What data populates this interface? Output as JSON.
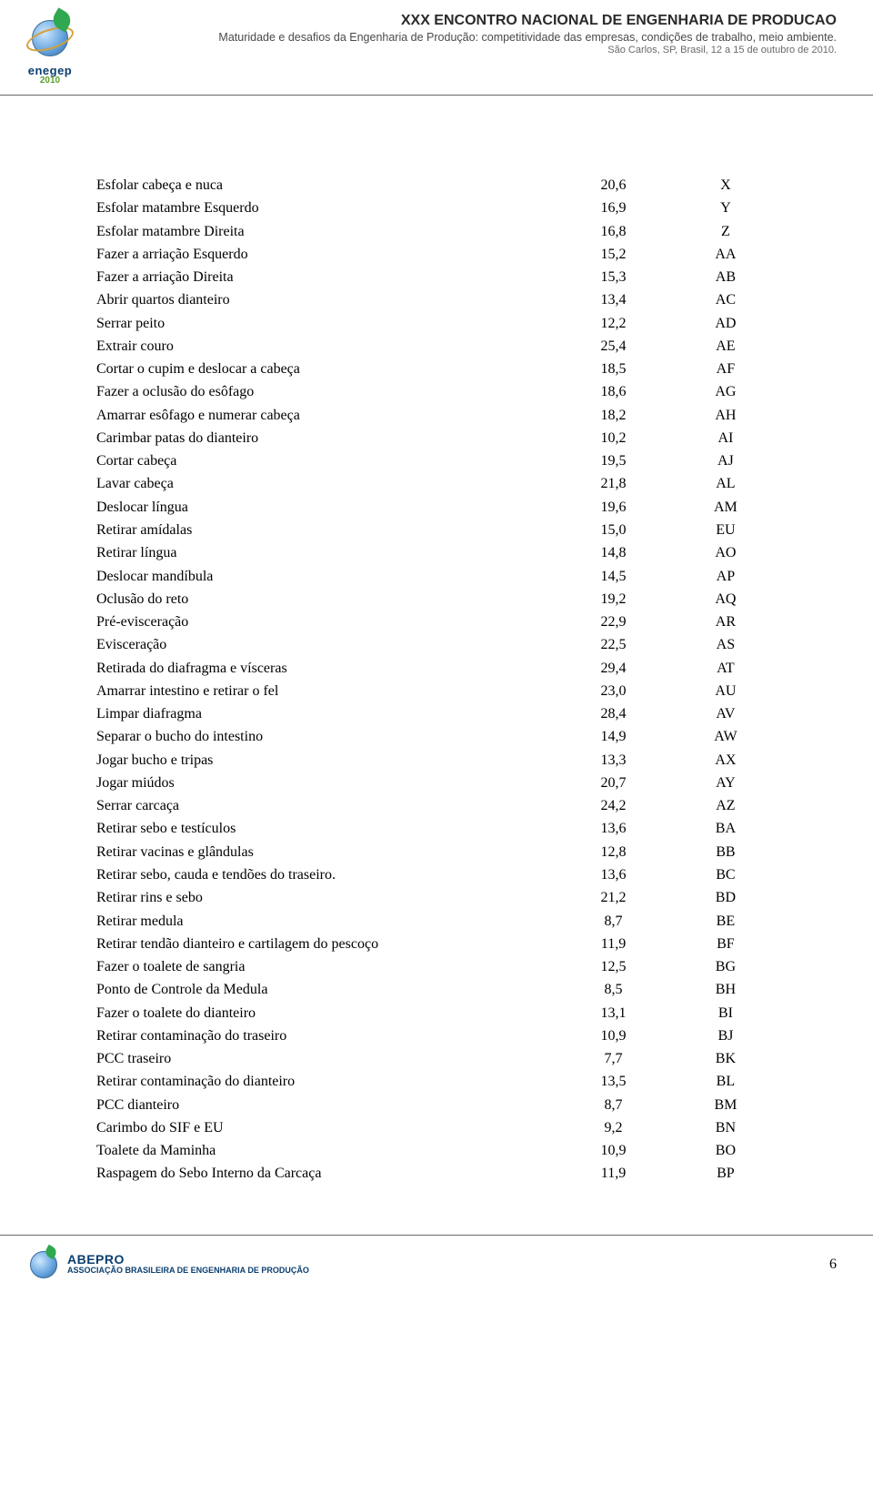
{
  "header": {
    "logo_text": "enegep",
    "logo_year": "2010",
    "title": "XXX ENCONTRO NACIONAL DE ENGENHARIA DE PRODUCAO",
    "subtitle": "Maturidade e desafios da Engenharia de Produção: competitividade das empresas, condições de trabalho, meio ambiente.",
    "location": "São Carlos, SP, Brasil, 12 a 15 de outubro de 2010."
  },
  "rows": [
    {
      "desc": "Esfolar cabeça e nuca",
      "val": "20,6",
      "code": "X"
    },
    {
      "desc": "Esfolar matambre Esquerdo",
      "val": "16,9",
      "code": "Y"
    },
    {
      "desc": "Esfolar matambre Direita",
      "val": "16,8",
      "code": "Z"
    },
    {
      "desc": "Fazer a arriação Esquerdo",
      "val": "15,2",
      "code": "AA"
    },
    {
      "desc": "Fazer a arriação Direita",
      "val": "15,3",
      "code": "AB"
    },
    {
      "desc": "Abrir quartos dianteiro",
      "val": "13,4",
      "code": "AC"
    },
    {
      "desc": "Serrar peito",
      "val": "12,2",
      "code": "AD"
    },
    {
      "desc": "Extrair couro",
      "val": "25,4",
      "code": "AE"
    },
    {
      "desc": "Cortar o cupim e deslocar a cabeça",
      "val": "18,5",
      "code": "AF"
    },
    {
      "desc": "Fazer a oclusão do esôfago",
      "val": "18,6",
      "code": "AG"
    },
    {
      "desc": "Amarrar esôfago e numerar cabeça",
      "val": "18,2",
      "code": "AH"
    },
    {
      "desc": "Carimbar patas do dianteiro",
      "val": "10,2",
      "code": "AI"
    },
    {
      "desc": "Cortar cabeça",
      "val": "19,5",
      "code": "AJ"
    },
    {
      "desc": "Lavar cabeça",
      "val": "21,8",
      "code": "AL"
    },
    {
      "desc": "Deslocar língua",
      "val": "19,6",
      "code": "AM"
    },
    {
      "desc": "Retirar amídalas",
      "val": "15,0",
      "code": "EU"
    },
    {
      "desc": "Retirar língua",
      "val": "14,8",
      "code": "AO"
    },
    {
      "desc": "Deslocar mandíbula",
      "val": "14,5",
      "code": "AP"
    },
    {
      "desc": "Oclusão do reto",
      "val": "19,2",
      "code": "AQ"
    },
    {
      "desc": "Pré-evisceração",
      "val": "22,9",
      "code": "AR"
    },
    {
      "desc": "Evisceração",
      "val": "22,5",
      "code": "AS"
    },
    {
      "desc": "Retirada do diafragma e vísceras",
      "val": "29,4",
      "code": "AT"
    },
    {
      "desc": "Amarrar intestino e retirar o fel",
      "val": "23,0",
      "code": "AU"
    },
    {
      "desc": "Limpar diafragma",
      "val": "28,4",
      "code": "AV"
    },
    {
      "desc": "Separar o bucho do intestino",
      "val": "14,9",
      "code": "AW"
    },
    {
      "desc": "Jogar bucho e tripas",
      "val": "13,3",
      "code": "AX"
    },
    {
      "desc": "Jogar miúdos",
      "val": "20,7",
      "code": "AY"
    },
    {
      "desc": "Serrar carcaça",
      "val": "24,2",
      "code": "AZ"
    },
    {
      "desc": "Retirar sebo e testículos",
      "val": "13,6",
      "code": "BA"
    },
    {
      "desc": "Retirar vacinas e glândulas",
      "val": "12,8",
      "code": "BB"
    },
    {
      "desc": "Retirar sebo, cauda e tendões do traseiro.",
      "val": "13,6",
      "code": "BC"
    },
    {
      "desc": "Retirar rins e sebo",
      "val": "21,2",
      "code": "BD"
    },
    {
      "desc": "Retirar medula",
      "val": "8,7",
      "code": "BE"
    },
    {
      "desc": "Retirar tendão dianteiro e cartilagem do pescoço",
      "val": "11,9",
      "code": "BF"
    },
    {
      "desc": "Fazer o toalete de sangria",
      "val": "12,5",
      "code": "BG"
    },
    {
      "desc": "Ponto de Controle da Medula",
      "val": "8,5",
      "code": "BH"
    },
    {
      "desc": "Fazer o toalete do dianteiro",
      "val": "13,1",
      "code": "BI"
    },
    {
      "desc": "Retirar contaminação do traseiro",
      "val": "10,9",
      "code": "BJ"
    },
    {
      "desc": "PCC traseiro",
      "val": "7,7",
      "code": "BK"
    },
    {
      "desc": "Retirar contaminação do dianteiro",
      "val": "13,5",
      "code": "BL"
    },
    {
      "desc": "PCC dianteiro",
      "val": "8,7",
      "code": "BM"
    },
    {
      "desc": "Carimbo do SIF e EU",
      "val": "9,2",
      "code": "BN"
    },
    {
      "desc": "Toalete da Maminha",
      "val": "10,9",
      "code": "BO"
    },
    {
      "desc": "Raspagem do Sebo Interno da Carcaça",
      "val": "11,9",
      "code": "BP"
    }
  ],
  "footer": {
    "brand": "ABEPRO",
    "tagline": "ASSOCIAÇÃO BRASILEIRA DE ENGENHARIA DE PRODUÇÃO",
    "page_number": "6"
  }
}
